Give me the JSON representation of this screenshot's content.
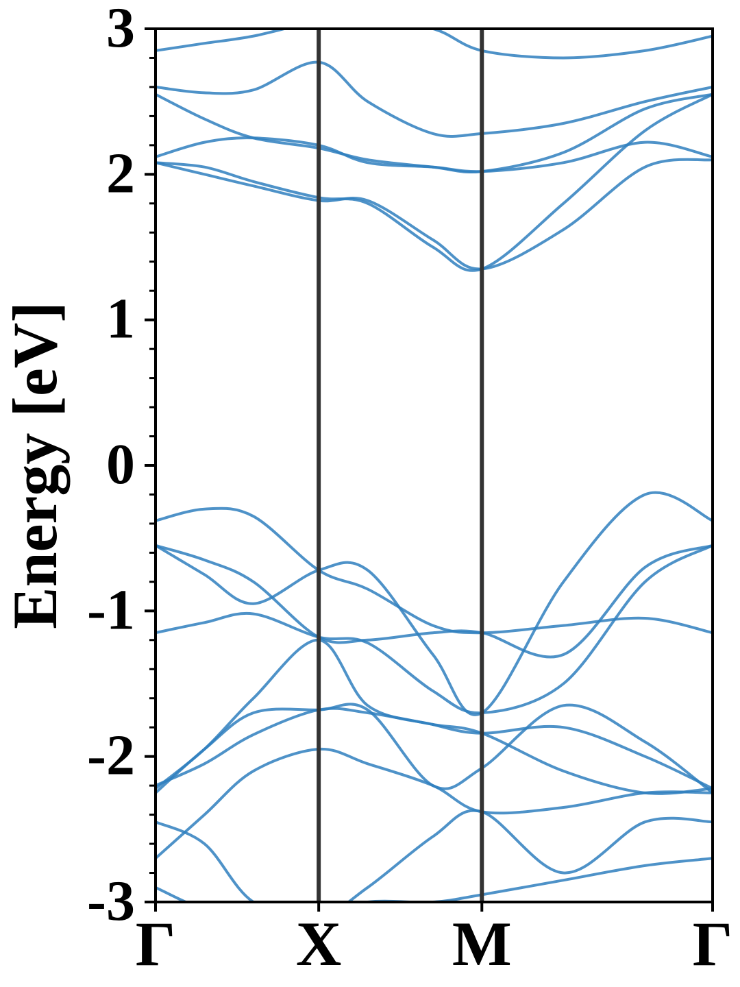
{
  "chart_data": {
    "type": "line",
    "title": "",
    "xlabel": "",
    "ylabel": "Energy [eV]",
    "ylim": [
      -3,
      3
    ],
    "yticks": [
      "-3",
      "-2",
      "-1",
      "0",
      "1",
      "2",
      "3"
    ],
    "y_minor_step": 0.2,
    "kpath": [
      "Γ",
      "X",
      "M",
      "Γ"
    ],
    "kpath_positions": [
      0,
      1,
      2,
      3.414
    ],
    "grid": false,
    "legend": "none",
    "line_color": "#2f7fbe",
    "vline_color": "#333333",
    "series": [
      {
        "x": [
          0,
          0.3,
          0.6,
          1.0,
          1.3,
          1.7,
          2.0,
          2.5,
          3.0,
          3.414
        ],
        "y": [
          2.6,
          2.56,
          2.58,
          2.77,
          2.5,
          2.28,
          2.28,
          2.35,
          2.5,
          2.6
        ]
      },
      {
        "x": [
          0,
          0.3,
          0.6,
          1.0,
          1.3,
          1.7,
          2.0,
          2.5,
          3.0,
          3.414
        ],
        "y": [
          2.55,
          2.38,
          2.25,
          2.18,
          2.1,
          2.05,
          2.02,
          2.15,
          2.45,
          2.55
        ]
      },
      {
        "x": [
          0,
          0.3,
          0.6,
          1.0,
          1.3,
          1.7,
          2.0,
          2.5,
          3.0,
          3.414
        ],
        "y": [
          2.12,
          2.22,
          2.25,
          2.2,
          2.08,
          2.05,
          2.02,
          2.08,
          2.22,
          2.12
        ]
      },
      {
        "x": [
          0,
          0.3,
          0.6,
          1.0,
          1.3,
          1.7,
          2.0,
          2.5,
          3.0,
          3.414
        ],
        "y": [
          2.08,
          2.0,
          1.92,
          1.82,
          1.82,
          1.55,
          1.35,
          1.62,
          2.05,
          2.1
        ]
      },
      {
        "x": [
          0,
          0.3,
          0.6,
          1.0,
          1.3,
          1.7,
          2.0,
          2.5,
          3.0,
          3.414
        ],
        "y": [
          2.08,
          2.05,
          1.95,
          1.84,
          1.8,
          1.5,
          1.35,
          1.8,
          2.3,
          2.55
        ]
      },
      {
        "x": [
          0,
          0.3,
          0.6,
          1.0,
          1.3,
          1.7,
          2.0,
          2.5,
          3.0,
          3.414
        ],
        "y": [
          2.85,
          2.9,
          2.95,
          3.05,
          3.05,
          3.0,
          2.85,
          2.8,
          2.85,
          2.95
        ]
      },
      {
        "x": [
          0,
          0.3,
          0.6,
          1.0,
          1.3,
          1.7,
          2.0,
          2.5,
          3.0,
          3.414
        ],
        "y": [
          -0.38,
          -0.3,
          -0.35,
          -0.72,
          -0.85,
          -1.1,
          -1.15,
          -1.1,
          -1.05,
          -1.15
        ]
      },
      {
        "x": [
          0,
          0.3,
          0.6,
          1.0,
          1.3,
          1.7,
          2.0,
          2.5,
          3.0,
          3.414
        ],
        "y": [
          -0.55,
          -0.75,
          -0.95,
          -0.72,
          -0.72,
          -1.3,
          -1.7,
          -0.8,
          -0.2,
          -0.38
        ]
      },
      {
        "x": [
          0,
          0.3,
          0.6,
          1.0,
          1.3,
          1.7,
          2.0,
          2.5,
          3.0,
          3.414
        ],
        "y": [
          -0.55,
          -0.65,
          -0.8,
          -1.18,
          -1.2,
          -1.15,
          -1.15,
          -1.3,
          -0.7,
          -0.55
        ]
      },
      {
        "x": [
          0,
          0.3,
          0.6,
          1.0,
          1.3,
          1.7,
          2.0,
          2.5,
          3.0,
          3.414
        ],
        "y": [
          -1.15,
          -1.08,
          -1.02,
          -1.18,
          -1.22,
          -1.55,
          -1.7,
          -1.5,
          -0.8,
          -0.55
        ]
      },
      {
        "x": [
          0,
          0.3,
          0.6,
          1.0,
          1.3,
          1.7,
          2.0,
          2.5,
          3.0,
          3.414
        ],
        "y": [
          -2.22,
          -1.95,
          -1.6,
          -1.2,
          -1.65,
          -1.78,
          -1.84,
          -1.8,
          -2.0,
          -2.22
        ]
      },
      {
        "x": [
          0,
          0.3,
          0.6,
          1.0,
          1.3,
          1.7,
          2.0,
          2.5,
          3.0,
          3.414
        ],
        "y": [
          -2.25,
          -1.95,
          -1.7,
          -1.68,
          -1.68,
          -2.2,
          -2.08,
          -1.65,
          -1.9,
          -2.25
        ]
      },
      {
        "x": [
          0,
          0.3,
          0.6,
          1.0,
          1.3,
          1.7,
          2.0,
          2.5,
          3.0,
          3.414
        ],
        "y": [
          -2.2,
          -2.05,
          -1.85,
          -1.68,
          -1.7,
          -1.78,
          -1.84,
          -2.1,
          -2.25,
          -2.22
        ]
      },
      {
        "x": [
          0,
          0.3,
          0.6,
          1.0,
          1.3,
          1.7,
          2.0,
          2.5,
          3.0,
          3.414
        ],
        "y": [
          -2.45,
          -2.6,
          -3.0,
          -3.1,
          -2.9,
          -2.55,
          -2.38,
          -2.8,
          -2.45,
          -2.45
        ]
      },
      {
        "x": [
          0,
          0.3,
          0.6,
          1.0,
          1.3,
          1.7,
          2.0,
          2.5,
          3.0,
          3.414
        ],
        "y": [
          -2.7,
          -2.4,
          -2.1,
          -1.95,
          -2.05,
          -2.2,
          -2.38,
          -2.35,
          -2.25,
          -2.25
        ]
      },
      {
        "x": [
          0,
          0.3,
          0.6,
          1.0,
          1.3,
          1.7,
          2.0,
          2.5,
          3.0,
          3.414
        ],
        "y": [
          -2.9,
          -3.05,
          -3.1,
          -3.1,
          -3.0,
          -3.0,
          -2.95,
          -2.85,
          -2.75,
          -2.7
        ]
      }
    ]
  }
}
